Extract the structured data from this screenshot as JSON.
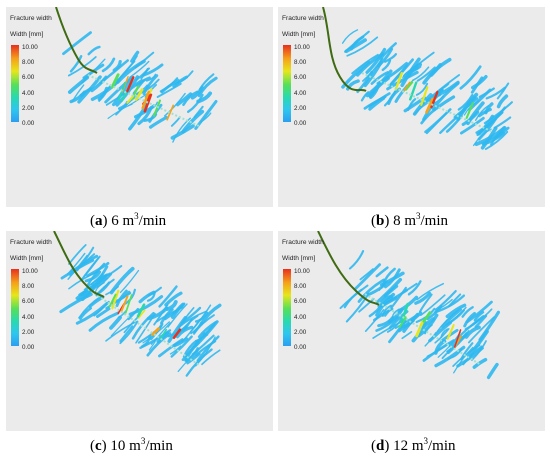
{
  "legend": {
    "title": "Fracture width",
    "subtitle": "Width [mm]",
    "ticks": [
      "10.00",
      "8.00",
      "6.00",
      "4.00",
      "2.00",
      "0.00"
    ],
    "colors": [
      "#e8301f",
      "#f5a21a",
      "#e6e61a",
      "#54e05a",
      "#28d9b0",
      "#2fc6ef",
      "#2a9ff0"
    ]
  },
  "wellbore_color": "#3f6b12",
  "fracture_color": "#2fb8ef",
  "panels": [
    {
      "letter": "a",
      "rate": "6 m",
      "exp": "3",
      "unit": "/min"
    },
    {
      "letter": "b",
      "rate": "8 m",
      "exp": "3",
      "unit": "/min"
    },
    {
      "letter": "c",
      "rate": "10 m",
      "exp": "3",
      "unit": "/min"
    },
    {
      "letter": "d",
      "rate": "12 m",
      "exp": "3",
      "unit": "/min"
    }
  ]
}
